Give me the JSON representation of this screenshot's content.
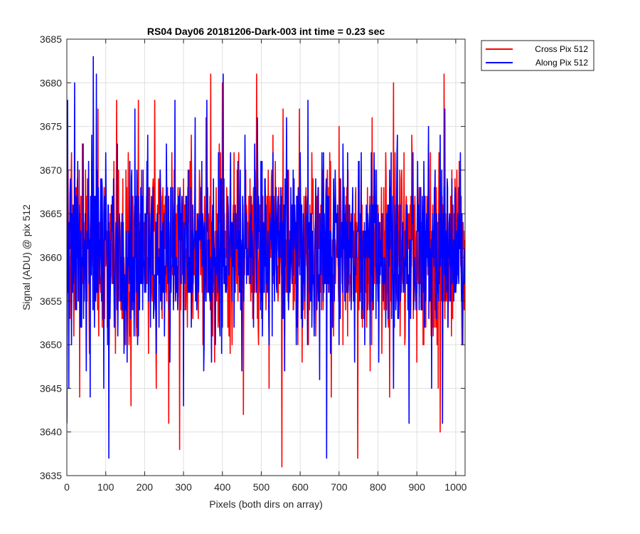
{
  "chart_data": {
    "type": "line",
    "title": "RS04 Day06 20181206-Dark-003 int time = 0.23 sec",
    "xlabel": "Pixels (both dirs on array)",
    "ylabel": "Signal (ADU) @ pix 512",
    "xlim": [
      0,
      1024
    ],
    "ylim": [
      3635,
      3685
    ],
    "xticks": [
      0,
      100,
      200,
      300,
      400,
      500,
      600,
      700,
      800,
      900,
      1000
    ],
    "yticks": [
      3635,
      3640,
      3645,
      3650,
      3655,
      3660,
      3665,
      3670,
      3675,
      3680,
      3685
    ],
    "grid": true,
    "legend_position": "outside top-right",
    "noise_summary": {
      "mean": 3661,
      "typical_range": [
        3647,
        3675
      ],
      "note": "per-pixel dark signal fluctuates rapidly around ~3661 ADU"
    },
    "series": [
      {
        "name": "Cross Pix 512",
        "color": "#ff0000",
        "n_points": 1024,
        "x": [
          0,
          3,
          10,
          18,
          24,
          33,
          40,
          47,
          55,
          58,
          64,
          70,
          77,
          80,
          88,
          96,
          104,
          112,
          114,
          125,
          128,
          135,
          140,
          150,
          158,
          165,
          170,
          180,
          184,
          190,
          198,
          210,
          213,
          220,
          226,
          230,
          240,
          245,
          250,
          258,
          262,
          270,
          280,
          288,
          290,
          300,
          310,
          320,
          330,
          340,
          350,
          358,
          362,
          370,
          380,
          384,
          390,
          400,
          410,
          420,
          430,
          440,
          446,
          454,
          460,
          470,
          480,
          488,
          493,
          500,
          510,
          520,
          530,
          540,
          548,
          553,
          556,
          560,
          570,
          580,
          590,
          598,
          605,
          610,
          620,
          630,
          640,
          650,
          660,
          670,
          680,
          690,
          700,
          710,
          720,
          730,
          740,
          748,
          752,
          760,
          770,
          780,
          785,
          790,
          800,
          810,
          820,
          830,
          840,
          850,
          860,
          870,
          880,
          890,
          900,
          910,
          920,
          930,
          940,
          950,
          955,
          960,
          970,
          975,
          980,
          990,
          1000,
          1010,
          1016,
          1020,
          1024
        ],
        "y": [
          3641,
          3670,
          3662,
          3651,
          3668,
          3644,
          3673,
          3658,
          3666,
          3649,
          3671,
          3654,
          3664,
          3677,
          3656,
          3668,
          3652,
          3660,
          3666,
          3649,
          3678,
          3655,
          3664,
          3650,
          3672,
          3643,
          3667,
          3652,
          3678,
          3658,
          3661,
          3649,
          3668,
          3655,
          3678,
          3645,
          3670,
          3653,
          3664,
          3660,
          3641,
          3672,
          3656,
          3666,
          3638,
          3669,
          3652,
          3674,
          3658,
          3663,
          3650,
          3676,
          3656,
          3681,
          3648,
          3668,
          3653,
          3680,
          3660,
          3649,
          3672,
          3655,
          3666,
          3642,
          3670,
          3657,
          3668,
          3681,
          3650,
          3661,
          3668,
          3645,
          3674,
          3656,
          3666,
          3636,
          3677,
          3651,
          3670,
          3660,
          3653,
          3677,
          3648,
          3667,
          3656,
          3672,
          3651,
          3664,
          3658,
          3670,
          3644,
          3662,
          3675,
          3650,
          3668,
          3657,
          3665,
          3637,
          3671,
          3652,
          3664,
          3647,
          3676,
          3658,
          3666,
          3649,
          3672,
          3644,
          3680,
          3655,
          3669,
          3651,
          3662,
          3670,
          3648,
          3665,
          3656,
          3673,
          3652,
          3668,
          3645,
          3640,
          3681,
          3660,
          3652,
          3670,
          3656,
          3668,
          3650,
          3661,
          3675
        ]
      },
      {
        "name": "Along Pix 512",
        "color": "#0000ff",
        "n_points": 1024,
        "x": [
          0,
          2,
          5,
          8,
          12,
          20,
          22,
          28,
          35,
          42,
          50,
          55,
          60,
          64,
          68,
          71,
          76,
          80,
          90,
          95,
          100,
          105,
          108,
          115,
          122,
          130,
          138,
          145,
          155,
          162,
          168,
          175,
          182,
          190,
          200,
          208,
          215,
          222,
          230,
          240,
          248,
          256,
          265,
          272,
          278,
          285,
          292,
          300,
          312,
          320,
          330,
          338,
          345,
          352,
          360,
          368,
          375,
          382,
          390,
          398,
          402,
          410,
          420,
          430,
          440,
          450,
          458,
          465,
          470,
          480,
          490,
          500,
          510,
          520,
          530,
          540,
          550,
          560,
          565,
          570,
          580,
          590,
          600,
          610,
          620,
          625,
          630,
          640,
          650,
          660,
          668,
          672,
          680,
          690,
          700,
          710,
          720,
          730,
          740,
          750,
          760,
          770,
          780,
          790,
          800,
          810,
          820,
          830,
          840,
          850,
          860,
          870,
          880,
          890,
          900,
          910,
          920,
          930,
          938,
          945,
          950,
          960,
          966,
          972,
          980,
          990,
          1000,
          1010,
          1018,
          1024
        ],
        "y": [
          3641,
          3678,
          3645,
          3667,
          3650,
          3680,
          3654,
          3671,
          3652,
          3673,
          3647,
          3666,
          3644,
          3674,
          3683,
          3652,
          3681,
          3656,
          3669,
          3645,
          3672,
          3650,
          3637,
          3666,
          3652,
          3673,
          3655,
          3664,
          3648,
          3671,
          3654,
          3677,
          3650,
          3668,
          3656,
          3674,
          3652,
          3668,
          3649,
          3670,
          3656,
          3673,
          3648,
          3668,
          3678,
          3654,
          3666,
          3643,
          3670,
          3652,
          3676,
          3657,
          3668,
          3647,
          3678,
          3655,
          3666,
          3650,
          3672,
          3649,
          3681,
          3656,
          3668,
          3652,
          3671,
          3647,
          3674,
          3658,
          3664,
          3652,
          3676,
          3655,
          3669,
          3650,
          3672,
          3656,
          3668,
          3647,
          3676,
          3654,
          3666,
          3650,
          3672,
          3657,
          3678,
          3664,
          3652,
          3669,
          3646,
          3672,
          3637,
          3666,
          3655,
          3670,
          3650,
          3673,
          3656,
          3664,
          3648,
          3671,
          3654,
          3666,
          3650,
          3672,
          3655,
          3665,
          3652,
          3670,
          3645,
          3674,
          3656,
          3663,
          3641,
          3672,
          3656,
          3668,
          3652,
          3675,
          3645,
          3668,
          3653,
          3674,
          3641,
          3677,
          3652,
          3669,
          3656,
          3666,
          3650,
          3641
        ]
      }
    ]
  }
}
